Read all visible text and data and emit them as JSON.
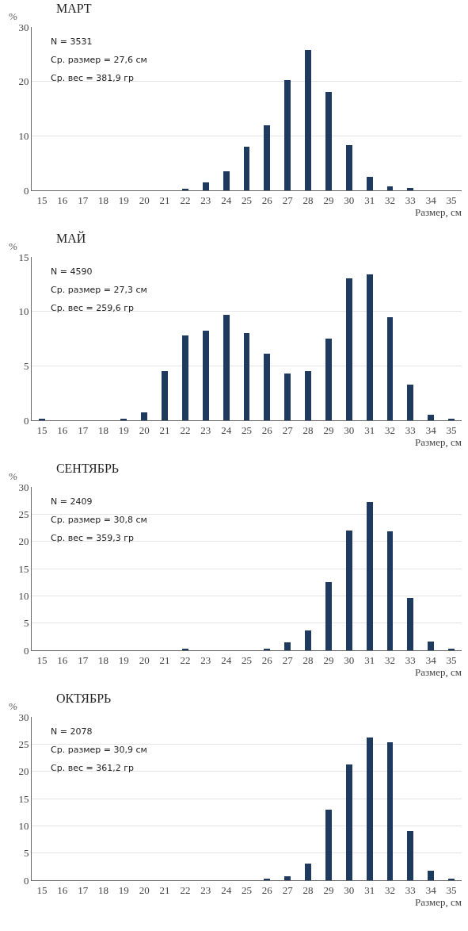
{
  "chart_data": [
    {
      "type": "bar",
      "title": "МАРТ",
      "ylabel": "%",
      "xlabel": "Размер, см",
      "categories": [
        "15",
        "16",
        "17",
        "18",
        "19",
        "20",
        "21",
        "22",
        "23",
        "24",
        "25",
        "26",
        "27",
        "28",
        "29",
        "30",
        "31",
        "32",
        "33",
        "34",
        "35"
      ],
      "color": "#1f3a5f",
      "values": [
        0,
        0,
        0,
        0,
        0,
        0,
        0,
        0.3,
        1.5,
        3.5,
        8,
        12,
        20.3,
        25.8,
        18,
        8.3,
        2.5,
        0.8,
        0.4,
        0,
        0
      ],
      "ylim": [
        0,
        30
      ],
      "yticks": [
        0,
        10,
        20,
        30
      ],
      "grid": "y",
      "annotations": [
        "N = 3531",
        "Ср. размер = 27,6 см",
        "Ср. вес = 381,9 гр"
      ]
    },
    {
      "type": "bar",
      "title": "МАЙ",
      "ylabel": "%",
      "xlabel": "Размер, см",
      "categories": [
        "15",
        "16",
        "17",
        "18",
        "19",
        "20",
        "21",
        "22",
        "23",
        "24",
        "25",
        "26",
        "27",
        "28",
        "29",
        "30",
        "31",
        "32",
        "33",
        "34",
        "35"
      ],
      "color": "#1f3a5f",
      "values": [
        0.1,
        0,
        0,
        0,
        0.1,
        0.7,
        4.5,
        7.8,
        8.2,
        9.7,
        8,
        6.1,
        4.3,
        4.5,
        7.5,
        13,
        13.4,
        9.5,
        3.3,
        0.5,
        0.1
      ],
      "ylim": [
        0,
        15
      ],
      "yticks": [
        0,
        5,
        10,
        15
      ],
      "grid": "y",
      "annotations": [
        "N = 4590",
        "Ср. размер = 27,3 см",
        "Ср. вес = 259,6 гр"
      ]
    },
    {
      "type": "bar",
      "title": "СЕНТЯБРЬ",
      "ylabel": "%",
      "xlabel": "Размер, см",
      "categories": [
        "15",
        "16",
        "17",
        "18",
        "19",
        "20",
        "21",
        "22",
        "23",
        "24",
        "25",
        "26",
        "27",
        "28",
        "29",
        "30",
        "31",
        "32",
        "33",
        "34",
        "35"
      ],
      "color": "#1f3a5f",
      "values": [
        0,
        0,
        0,
        0,
        0,
        0,
        0,
        0.2,
        0,
        0,
        0,
        0.3,
        1.5,
        3.7,
        12.5,
        22,
        27.2,
        21.8,
        9.6,
        1.6,
        0.2
      ],
      "ylim": [
        0,
        30
      ],
      "yticks": [
        0,
        5,
        10,
        15,
        20,
        25,
        30
      ],
      "grid": "y",
      "annotations": [
        "N = 2409",
        "Ср. размер = 30,8 см",
        "Ср. вес = 359,3 гр"
      ]
    },
    {
      "type": "bar",
      "title": "ОКТЯБРЬ",
      "ylabel": "%",
      "xlabel": "Размер, см",
      "categories": [
        "15",
        "16",
        "17",
        "18",
        "19",
        "20",
        "21",
        "22",
        "23",
        "24",
        "25",
        "26",
        "27",
        "28",
        "29",
        "30",
        "31",
        "32",
        "33",
        "34",
        "35"
      ],
      "color": "#1f3a5f",
      "values": [
        0,
        0,
        0,
        0,
        0,
        0,
        0,
        0,
        0,
        0,
        0,
        0.2,
        0.8,
        3,
        13,
        21.3,
        26.2,
        25.3,
        9.1,
        1.7,
        0.2
      ],
      "ylim": [
        0,
        30
      ],
      "yticks": [
        0,
        5,
        10,
        15,
        20,
        25,
        30
      ],
      "grid": "y",
      "annotations": [
        "N = 2078",
        "Ср. размер = 30,9 см",
        "Ср. вес = 361,2 гр"
      ]
    }
  ]
}
